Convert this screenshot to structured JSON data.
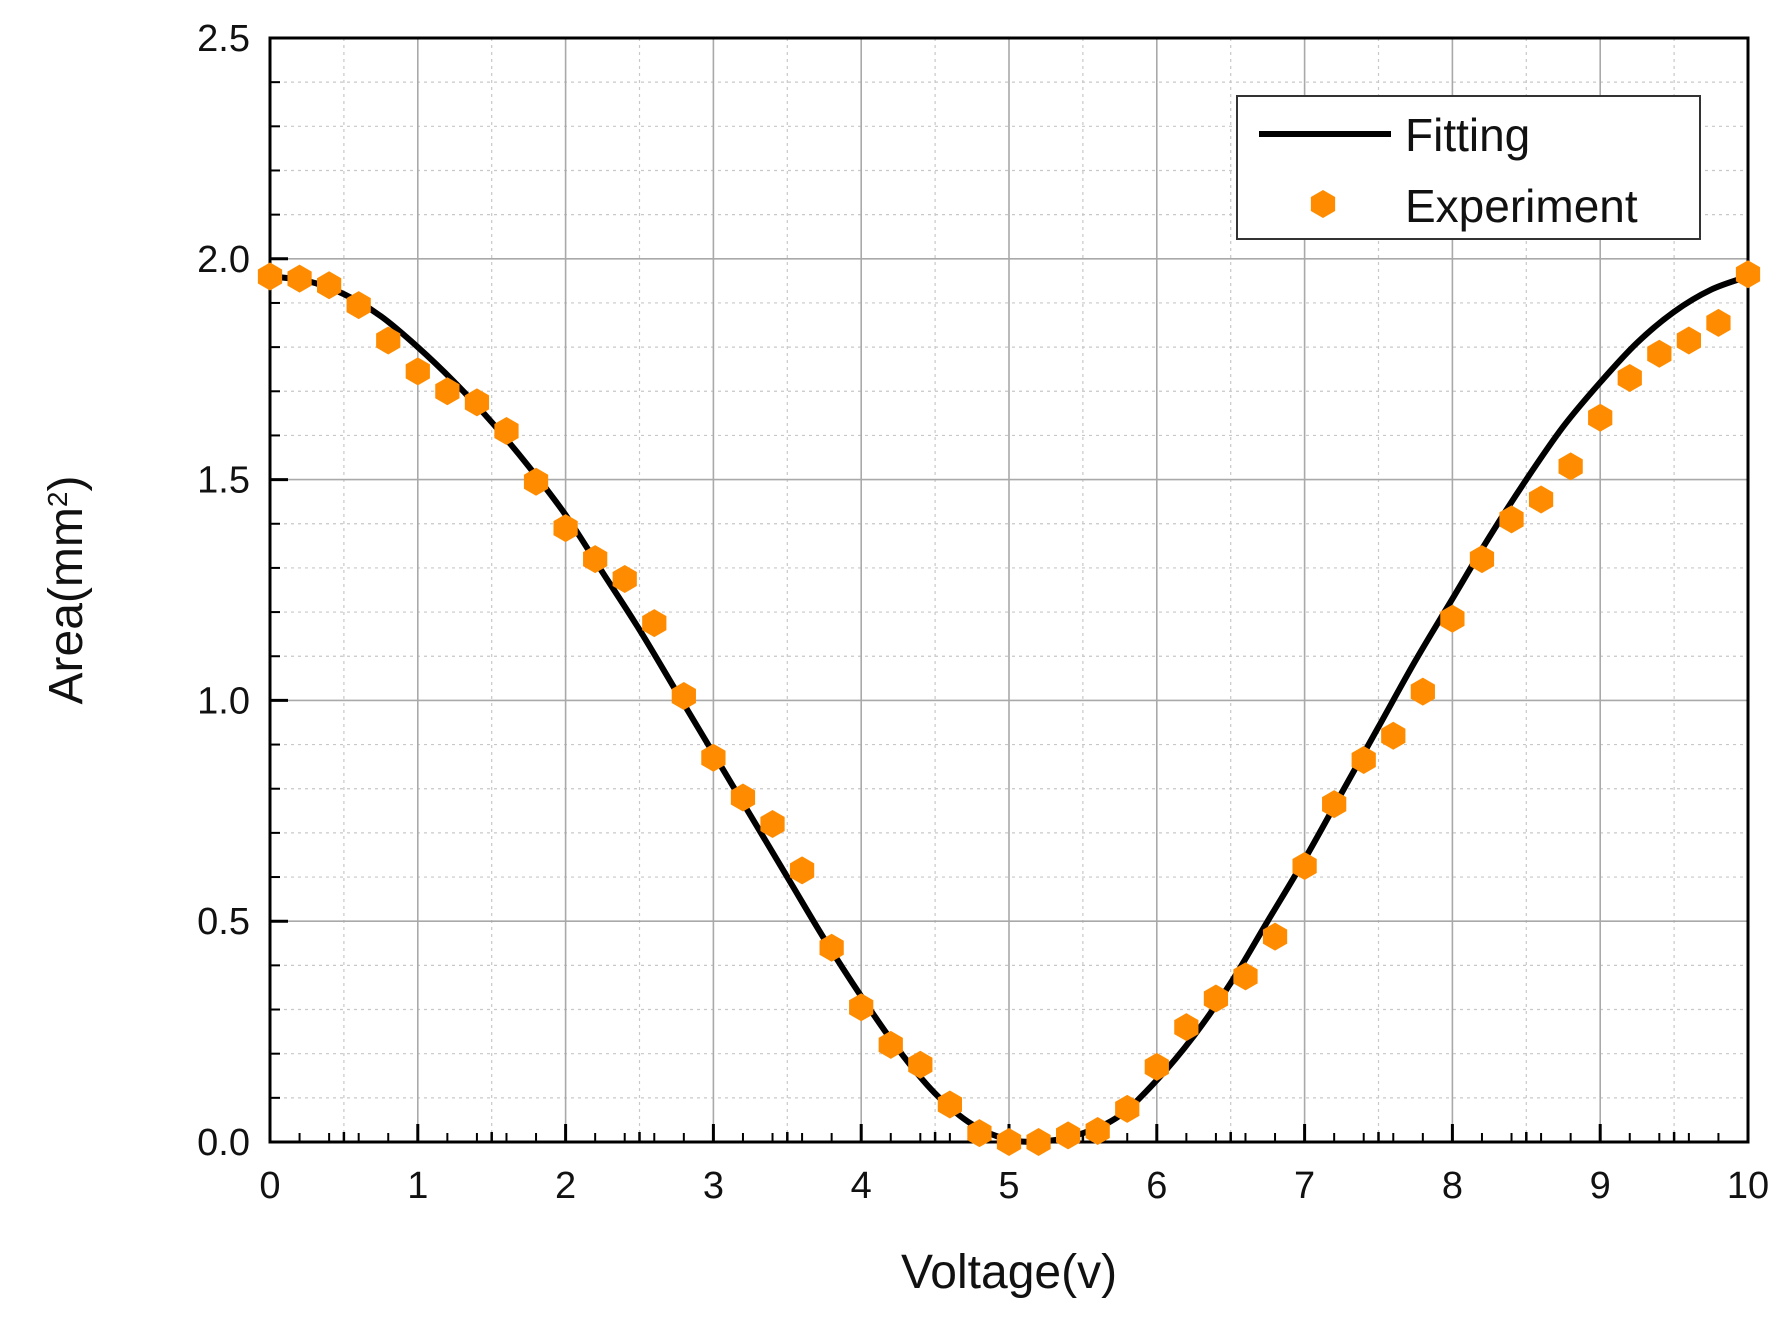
{
  "chart_data": {
    "type": "line",
    "title": "",
    "xlabel": "Voltage(v)",
    "ylabel": {
      "prefix": "Area(mm",
      "superscript": "2",
      "suffix": ")"
    },
    "xlim": [
      0,
      10
    ],
    "ylim": [
      0,
      2.5
    ],
    "x_ticks": [
      "0",
      "1",
      "2",
      "3",
      "4",
      "5",
      "6",
      "7",
      "8",
      "9",
      "10"
    ],
    "y_ticks": [
      "0.0",
      "0.5",
      "1.0",
      "1.5",
      "2.0",
      "2.5"
    ],
    "grid": true,
    "legend_position": "top-right",
    "series": [
      {
        "name": "Fitting",
        "kind": "line",
        "color": "#000000",
        "x": [
          0,
          0.25,
          0.5,
          0.75,
          1,
          1.25,
          1.5,
          1.75,
          2,
          2.25,
          2.5,
          2.75,
          3,
          3.25,
          3.5,
          3.75,
          4,
          4.25,
          4.5,
          4.75,
          5,
          5.25,
          5.5,
          5.75,
          6,
          6.25,
          6.5,
          6.75,
          7,
          7.25,
          7.5,
          7.75,
          8,
          8.25,
          8.5,
          8.75,
          9,
          9.25,
          9.5,
          9.75,
          10
        ],
        "y": [
          1.96,
          1.95,
          1.92,
          1.87,
          1.8,
          1.72,
          1.63,
          1.53,
          1.42,
          1.29,
          1.16,
          1.02,
          0.88,
          0.74,
          0.6,
          0.46,
          0.33,
          0.21,
          0.11,
          0.04,
          0.005,
          0.002,
          0.02,
          0.06,
          0.14,
          0.24,
          0.36,
          0.5,
          0.64,
          0.79,
          0.94,
          1.09,
          1.23,
          1.37,
          1.5,
          1.62,
          1.72,
          1.81,
          1.88,
          1.93,
          1.96
        ]
      },
      {
        "name": "Experiment",
        "kind": "scatter",
        "color": "#ff8c00",
        "x": [
          0,
          0.2,
          0.4,
          0.6,
          0.8,
          1.0,
          1.2,
          1.4,
          1.6,
          1.8,
          2.0,
          2.2,
          2.4,
          2.6,
          2.8,
          3.0,
          3.2,
          3.4,
          3.6,
          3.8,
          4.0,
          4.2,
          4.4,
          4.6,
          4.8,
          5.0,
          5.2,
          5.4,
          5.6,
          5.8,
          6.0,
          6.2,
          6.4,
          6.6,
          6.8,
          7.0,
          7.2,
          7.4,
          7.6,
          7.8,
          8.0,
          8.2,
          8.4,
          8.6,
          8.8,
          9.0,
          9.2,
          9.4,
          9.6,
          9.8,
          10.0
        ],
        "y": [
          1.96,
          1.955,
          1.94,
          1.895,
          1.815,
          1.745,
          1.7,
          1.675,
          1.61,
          1.495,
          1.39,
          1.32,
          1.275,
          1.175,
          1.01,
          0.87,
          0.78,
          0.72,
          0.615,
          0.44,
          0.305,
          0.22,
          0.175,
          0.085,
          0.02,
          0.0,
          0.0,
          0.015,
          0.025,
          0.075,
          0.17,
          0.26,
          0.325,
          0.375,
          0.465,
          0.625,
          0.765,
          0.865,
          0.92,
          1.02,
          1.185,
          1.32,
          1.41,
          1.455,
          1.53,
          1.64,
          1.73,
          1.785,
          1.815,
          1.855,
          1.965
        ]
      }
    ]
  }
}
